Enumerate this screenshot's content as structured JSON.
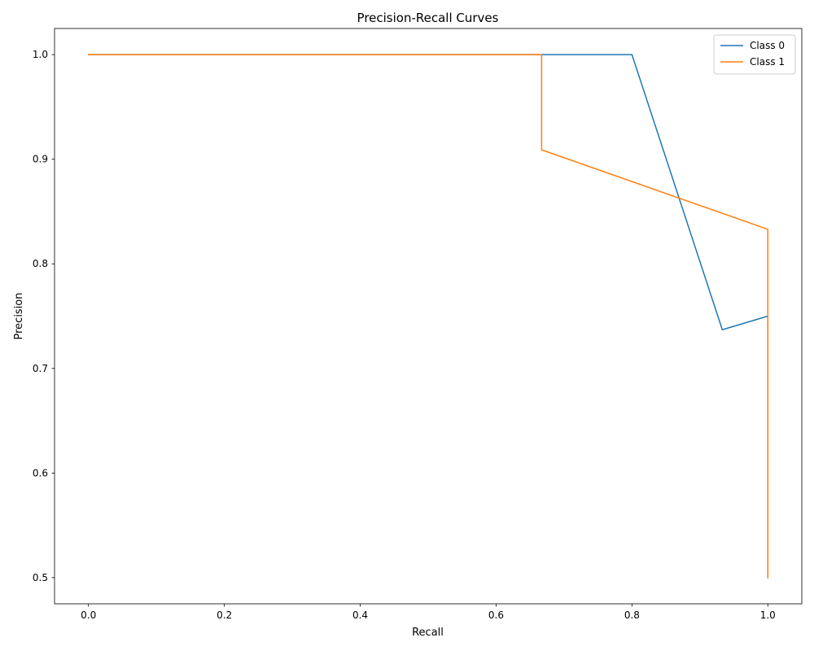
{
  "chart_data": {
    "type": "line",
    "title": "Precision-Recall Curves",
    "xlabel": "Recall",
    "ylabel": "Precision",
    "xlim": [
      -0.05,
      1.05
    ],
    "ylim": [
      0.475,
      1.025
    ],
    "xticks": [
      0.0,
      0.2,
      0.4,
      0.6,
      0.8,
      1.0
    ],
    "xtick_labels": [
      "0.0",
      "0.2",
      "0.4",
      "0.6",
      "0.8",
      "1.0"
    ],
    "yticks": [
      0.5,
      0.6,
      0.7,
      0.8,
      0.9,
      1.0
    ],
    "ytick_labels": [
      "0.5",
      "0.6",
      "0.7",
      "0.8",
      "0.9",
      "1.0"
    ],
    "grid": false,
    "legend_position": "top-right",
    "series": [
      {
        "name": "Class 0",
        "color": "#1f77b4",
        "x": [
          0.0,
          0.8,
          0.933,
          1.0,
          1.0
        ],
        "y": [
          1.0,
          1.0,
          0.737,
          0.75,
          0.5
        ]
      },
      {
        "name": "Class 1",
        "color": "#ff7f0e",
        "x": [
          0.0,
          0.667,
          0.667,
          1.0,
          1.0
        ],
        "y": [
          1.0,
          1.0,
          0.909,
          0.833,
          0.5
        ]
      }
    ]
  }
}
